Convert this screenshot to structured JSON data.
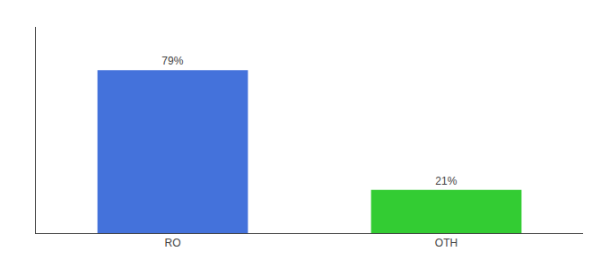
{
  "chart_data": {
    "type": "bar",
    "categories": [
      "RO",
      "OTH"
    ],
    "values": [
      79,
      21
    ],
    "value_labels": [
      "79%",
      "21%"
    ],
    "colors": [
      "#4472db",
      "#33cc33"
    ],
    "ylim": [
      0,
      100
    ],
    "data_labels": true,
    "tick_labels": "x",
    "grid": false
  }
}
